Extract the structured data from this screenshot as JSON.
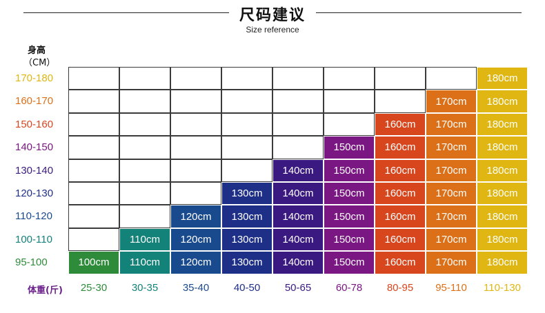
{
  "header": {
    "title": "尺码建议",
    "subtitle": "Size reference"
  },
  "axes": {
    "height_title": "身高",
    "height_unit": "（CM）",
    "weight_title": "体重(斤)"
  },
  "sizes": [
    {
      "label": "100cm",
      "color": "#2e8b3a"
    },
    {
      "label": "110cm",
      "color": "#138278"
    },
    {
      "label": "120cm",
      "color": "#1a4a8e"
    },
    {
      "label": "130cm",
      "color": "#1e2f88"
    },
    {
      "label": "140cm",
      "color": "#3a1a80"
    },
    {
      "label": "150cm",
      "color": "#7a1782"
    },
    {
      "label": "160cm",
      "color": "#d8461e"
    },
    {
      "label": "170cm",
      "color": "#dc7018"
    },
    {
      "label": "180cm",
      "color": "#e0b712"
    }
  ],
  "height_ranges": [
    "95-100",
    "100-110",
    "110-120",
    "120-130",
    "130-140",
    "140-150",
    "150-160",
    "160-170",
    "170-180"
  ],
  "weight_ranges": [
    "25-30",
    "30-35",
    "35-40",
    "40-50",
    "50-65",
    "60-78",
    "80-95",
    "95-110",
    "110-130"
  ]
}
